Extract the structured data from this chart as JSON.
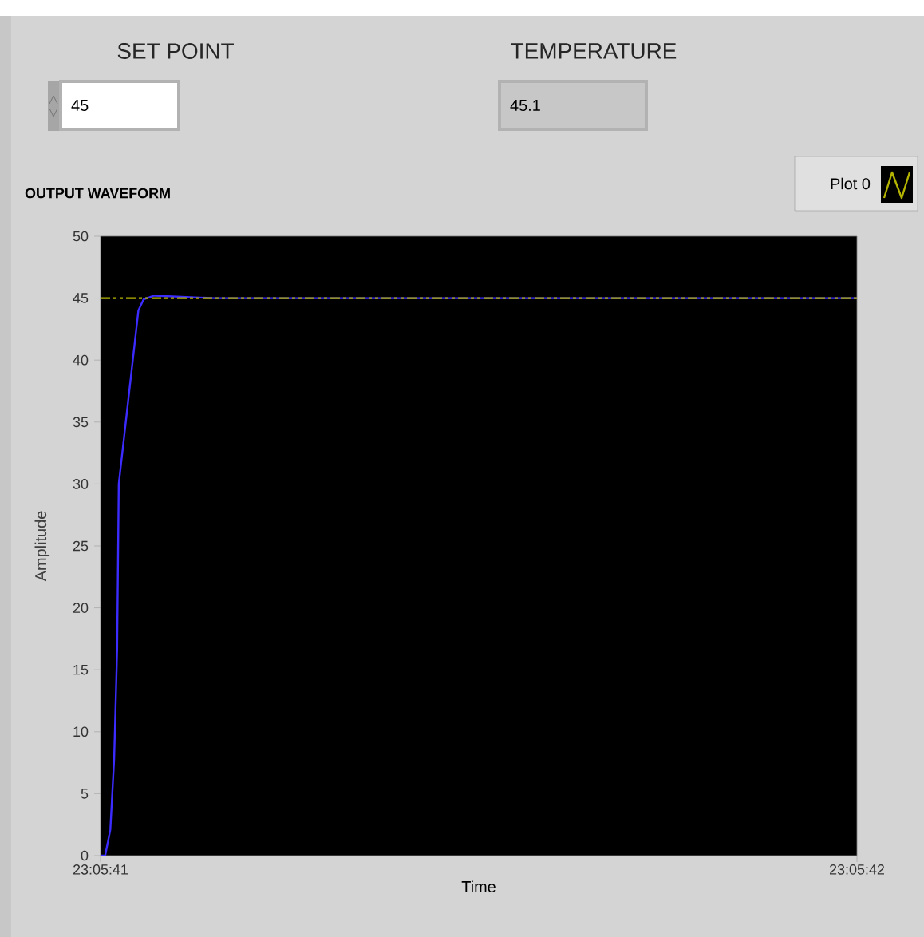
{
  "chart_data": {
    "type": "line",
    "title": "OUTPUT WAVEFORM",
    "xlabel": "Time",
    "ylabel": "Amplitude",
    "annotations": [
      "SET POINT",
      "45",
      "TEMPERATURE",
      "45.1"
    ],
    "xlim": [
      23.0947222,
      23.095
    ],
    "xticks": [
      {
        "value": 23.0947222,
        "label": "23:05:41"
      },
      {
        "value": 23.095,
        "label": "23:05:42"
      }
    ],
    "ylim": [
      0,
      50
    ],
    "yticks": [
      0,
      5,
      10,
      15,
      20,
      25,
      30,
      35,
      40,
      45,
      50
    ],
    "legend": "top right",
    "grid": false,
    "series": [
      {
        "color": "#3c2cff",
        "line_style": "solid",
        "x": [
          23.0947222,
          23.0947239,
          23.0947258,
          23.0947272,
          23.0947283,
          23.0947289,
          23.0947361,
          23.094738,
          23.0947419,
          23.0947639,
          23.0948056,
          23.0948611,
          23.0949167,
          23.095
        ],
        "values": [
          0,
          0,
          2.1,
          7.8,
          16.7,
          30,
          44,
          44.9,
          45.2,
          45,
          45,
          45,
          45,
          45
        ]
      },
      {
        "name": "Plot 0",
        "color": "#b4b400",
        "line_style": "dashed",
        "x": [
          23.0947222,
          23.095
        ],
        "values": [
          45,
          45
        ]
      }
    ]
  }
}
